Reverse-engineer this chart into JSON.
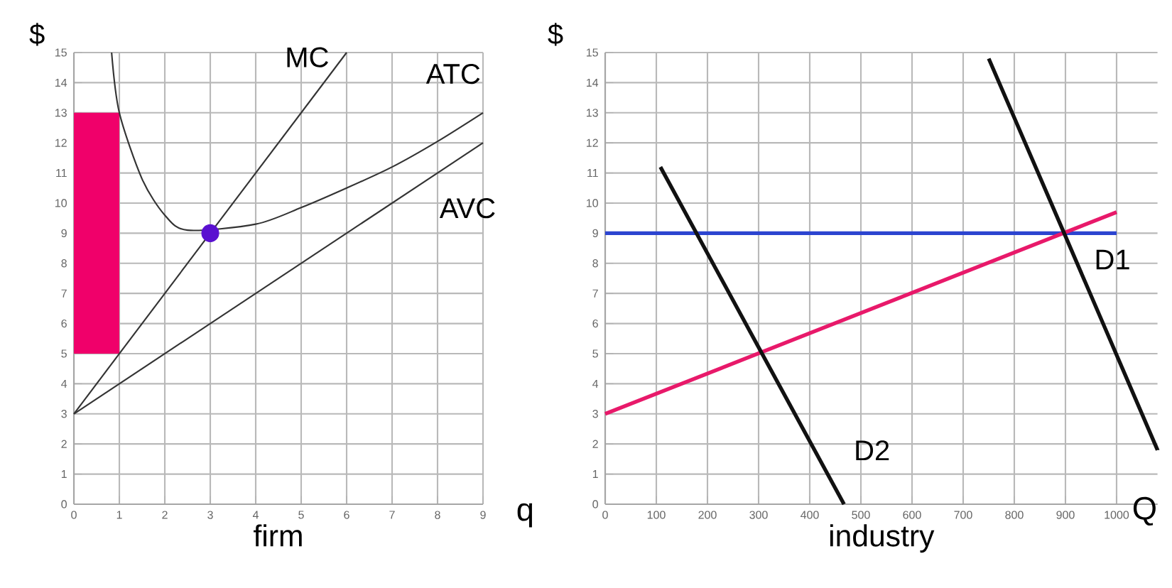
{
  "chart_data": [
    {
      "type": "line",
      "xlabel": "firm",
      "ylabel": "$",
      "annotations": [
        "q"
      ],
      "xlim": [
        0,
        9
      ],
      "ylim": [
        0,
        15
      ],
      "xticks": [
        0,
        1,
        2,
        3,
        4,
        5,
        6,
        7,
        8,
        9
      ],
      "yticks": [
        0,
        1,
        2,
        3,
        4,
        5,
        6,
        7,
        8,
        9,
        10,
        11,
        12,
        13,
        14,
        15
      ],
      "grid": true,
      "series": [
        {
          "type": "bar",
          "x": [
            0.5
          ],
          "base": [
            5
          ],
          "values": [
            8
          ],
          "color": "#f0006a"
        },
        {
          "name": "MC",
          "color": "#333333",
          "marker": "none",
          "x": [
            0,
            6
          ],
          "values": [
            3,
            15
          ]
        },
        {
          "name": "ATC",
          "color": "#333333",
          "marker": "none",
          "x": [
            0.83,
            1,
            1.5,
            2,
            2.5,
            3,
            4,
            5,
            6,
            7,
            8,
            9
          ],
          "values": [
            15,
            13,
            10.8,
            9.6,
            9.1,
            null,
            9.3,
            9.85,
            10.5,
            11.2,
            12.05,
            13
          ]
        },
        {
          "name": "AVC",
          "color": "#333333",
          "marker": "none",
          "x": [
            0,
            9
          ],
          "values": [
            3,
            12
          ]
        },
        {
          "type": "scatter",
          "marker": "circle",
          "color": "#5a10d0",
          "x": [
            3
          ],
          "values": [
            9
          ]
        }
      ]
    },
    {
      "type": "line",
      "xlabel": "industry",
      "ylabel": "$",
      "annotations": [
        "Q"
      ],
      "xlim": [
        0,
        1080
      ],
      "ylim": [
        0,
        15
      ],
      "xticks": [
        0,
        100,
        200,
        300,
        400,
        500,
        600,
        700,
        800,
        900,
        1000
      ],
      "yticks": [
        0,
        1,
        2,
        3,
        4,
        5,
        6,
        7,
        8,
        9,
        10,
        11,
        12,
        13,
        14,
        15
      ],
      "grid": true,
      "series": [
        {
          "color": "#2c44d0",
          "marker": "none",
          "x": [
            0,
            1000
          ],
          "values": [
            9,
            9
          ]
        },
        {
          "color": "#e8196a",
          "marker": "none",
          "x": [
            0,
            1000
          ],
          "values": [
            3,
            9.7
          ]
        },
        {
          "name": "D2",
          "color": "#111111",
          "marker": "none",
          "x": [
            108,
            467
          ],
          "values": [
            11.2,
            0
          ]
        },
        {
          "name": "D1",
          "color": "#111111",
          "marker": "none",
          "x": [
            750,
            900,
            1080
          ],
          "values": [
            14.8,
            8.9,
            1.8
          ]
        }
      ]
    }
  ]
}
